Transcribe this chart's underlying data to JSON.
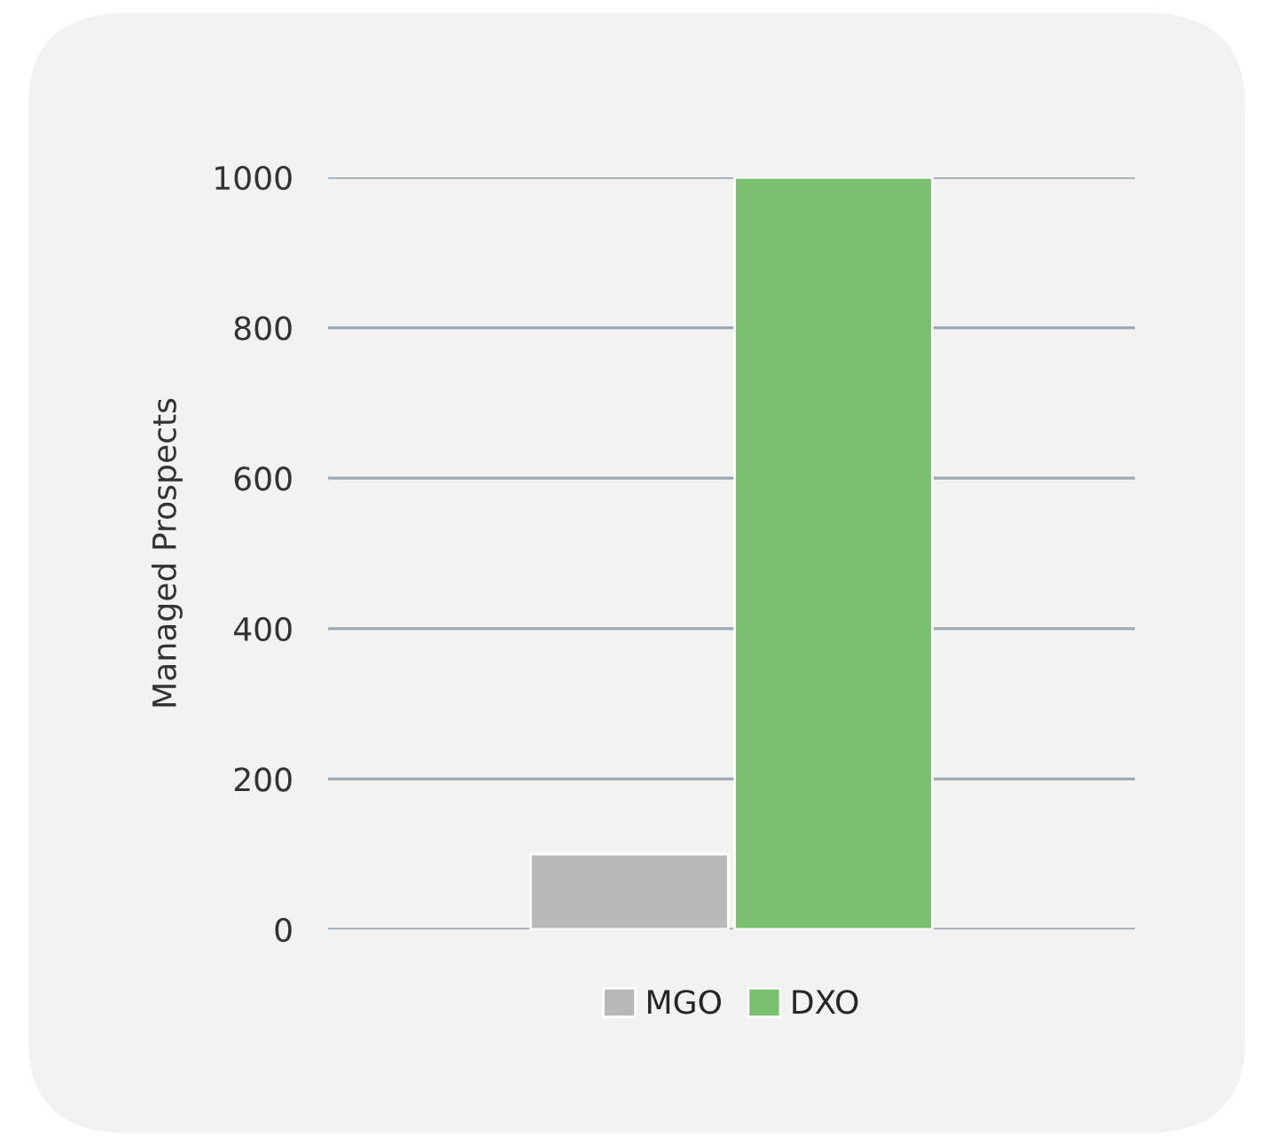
{
  "chart_data": {
    "type": "bar",
    "ylabel": "Managed Prospects",
    "categories": [
      null
    ],
    "series": [
      {
        "name": "MGO",
        "color": "#b9b9b9",
        "values": [
          100
        ]
      },
      {
        "name": "DXO",
        "color": "#79c06e",
        "values": [
          1000
        ]
      }
    ],
    "ylim": [
      0,
      1000
    ],
    "yticks": [
      0,
      200,
      400,
      600,
      800,
      1000
    ],
    "grid": "y",
    "legend": "bottom"
  }
}
